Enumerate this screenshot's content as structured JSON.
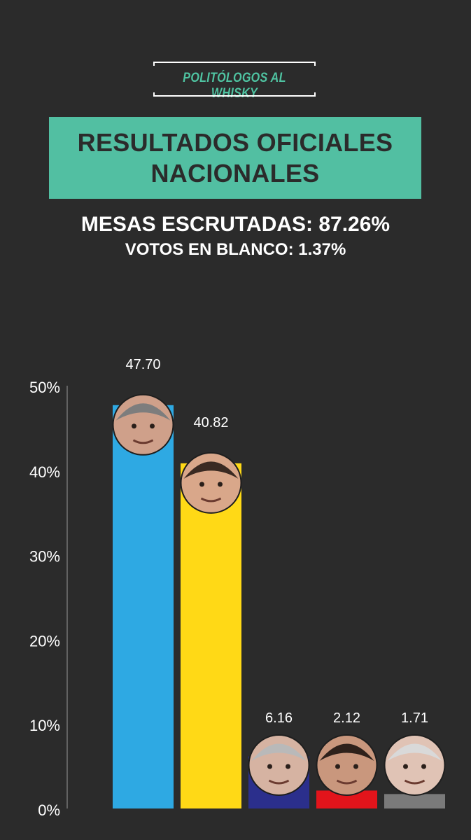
{
  "brand": {
    "name": "POLITÓLOGOS AL WHISKY"
  },
  "header": {
    "title_line1": "RESULTADOS OFICIALES",
    "title_line2": "NACIONALES",
    "stat1": "MESAS ESCRUTADAS: 87.26%",
    "stat2": "VOTOS EN BLANCO: 1.37%"
  },
  "colors": {
    "background": "#2b2b2b",
    "accent": "#52bfa2"
  },
  "chart_data": {
    "type": "bar",
    "title": "",
    "xlabel": "",
    "ylabel": "",
    "ylim": [
      0,
      50
    ],
    "yticks": [
      0,
      10,
      20,
      30,
      40,
      50
    ],
    "ytick_labels": [
      "0%",
      "10%",
      "20%",
      "30%",
      "40%",
      "50%"
    ],
    "grid": false,
    "values": [
      47.7,
      40.82,
      6.16,
      2.12,
      1.71
    ],
    "data_labels": [
      "47.70",
      "40.82",
      "6.16",
      "2.12",
      "1.71"
    ],
    "bar_colors": [
      "#2ea9e3",
      "#ffd916",
      "#2b2f8c",
      "#e3141b",
      "#7a7a7a"
    ],
    "markers": [
      "candidate-1-photo",
      "candidate-2-photo",
      "candidate-3-photo",
      "candidate-4-photo",
      "candidate-5-photo"
    ]
  }
}
